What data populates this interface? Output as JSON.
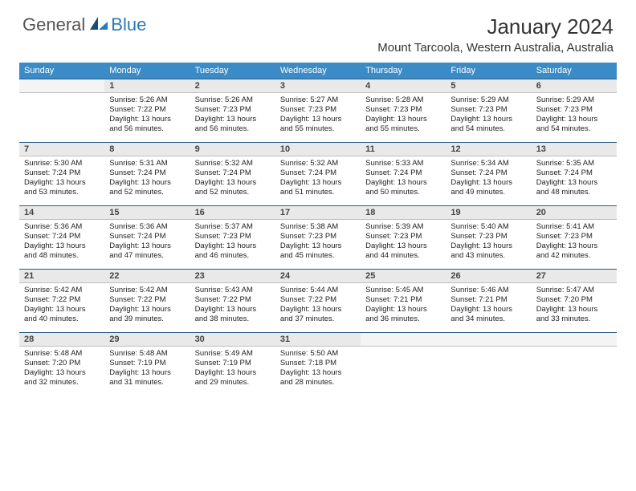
{
  "brand": {
    "general": "General",
    "blue": "Blue"
  },
  "title": {
    "month": "January 2024",
    "location": "Mount Tarcoola, Western Australia, Australia"
  },
  "colors": {
    "header_bg": "#3b8bc6",
    "header_text": "#ffffff",
    "daynum_bg": "#e9e9e9",
    "daynum_border_top": "#2a5b80",
    "logo_blue": "#2a7ab9",
    "logo_dark": "#1a4d73"
  },
  "weekdays": [
    "Sunday",
    "Monday",
    "Tuesday",
    "Wednesday",
    "Thursday",
    "Friday",
    "Saturday"
  ],
  "weeks": [
    {
      "nums": [
        "",
        "1",
        "2",
        "3",
        "4",
        "5",
        "6"
      ],
      "cells": [
        null,
        {
          "sunrise": "Sunrise: 5:26 AM",
          "sunset": "Sunset: 7:22 PM",
          "day1": "Daylight: 13 hours",
          "day2": "and 56 minutes."
        },
        {
          "sunrise": "Sunrise: 5:26 AM",
          "sunset": "Sunset: 7:23 PM",
          "day1": "Daylight: 13 hours",
          "day2": "and 56 minutes."
        },
        {
          "sunrise": "Sunrise: 5:27 AM",
          "sunset": "Sunset: 7:23 PM",
          "day1": "Daylight: 13 hours",
          "day2": "and 55 minutes."
        },
        {
          "sunrise": "Sunrise: 5:28 AM",
          "sunset": "Sunset: 7:23 PM",
          "day1": "Daylight: 13 hours",
          "day2": "and 55 minutes."
        },
        {
          "sunrise": "Sunrise: 5:29 AM",
          "sunset": "Sunset: 7:23 PM",
          "day1": "Daylight: 13 hours",
          "day2": "and 54 minutes."
        },
        {
          "sunrise": "Sunrise: 5:29 AM",
          "sunset": "Sunset: 7:23 PM",
          "day1": "Daylight: 13 hours",
          "day2": "and 54 minutes."
        }
      ]
    },
    {
      "nums": [
        "7",
        "8",
        "9",
        "10",
        "11",
        "12",
        "13"
      ],
      "cells": [
        {
          "sunrise": "Sunrise: 5:30 AM",
          "sunset": "Sunset: 7:24 PM",
          "day1": "Daylight: 13 hours",
          "day2": "and 53 minutes."
        },
        {
          "sunrise": "Sunrise: 5:31 AM",
          "sunset": "Sunset: 7:24 PM",
          "day1": "Daylight: 13 hours",
          "day2": "and 52 minutes."
        },
        {
          "sunrise": "Sunrise: 5:32 AM",
          "sunset": "Sunset: 7:24 PM",
          "day1": "Daylight: 13 hours",
          "day2": "and 52 minutes."
        },
        {
          "sunrise": "Sunrise: 5:32 AM",
          "sunset": "Sunset: 7:24 PM",
          "day1": "Daylight: 13 hours",
          "day2": "and 51 minutes."
        },
        {
          "sunrise": "Sunrise: 5:33 AM",
          "sunset": "Sunset: 7:24 PM",
          "day1": "Daylight: 13 hours",
          "day2": "and 50 minutes."
        },
        {
          "sunrise": "Sunrise: 5:34 AM",
          "sunset": "Sunset: 7:24 PM",
          "day1": "Daylight: 13 hours",
          "day2": "and 49 minutes."
        },
        {
          "sunrise": "Sunrise: 5:35 AM",
          "sunset": "Sunset: 7:24 PM",
          "day1": "Daylight: 13 hours",
          "day2": "and 48 minutes."
        }
      ]
    },
    {
      "nums": [
        "14",
        "15",
        "16",
        "17",
        "18",
        "19",
        "20"
      ],
      "cells": [
        {
          "sunrise": "Sunrise: 5:36 AM",
          "sunset": "Sunset: 7:24 PM",
          "day1": "Daylight: 13 hours",
          "day2": "and 48 minutes."
        },
        {
          "sunrise": "Sunrise: 5:36 AM",
          "sunset": "Sunset: 7:24 PM",
          "day1": "Daylight: 13 hours",
          "day2": "and 47 minutes."
        },
        {
          "sunrise": "Sunrise: 5:37 AM",
          "sunset": "Sunset: 7:23 PM",
          "day1": "Daylight: 13 hours",
          "day2": "and 46 minutes."
        },
        {
          "sunrise": "Sunrise: 5:38 AM",
          "sunset": "Sunset: 7:23 PM",
          "day1": "Daylight: 13 hours",
          "day2": "and 45 minutes."
        },
        {
          "sunrise": "Sunrise: 5:39 AM",
          "sunset": "Sunset: 7:23 PM",
          "day1": "Daylight: 13 hours",
          "day2": "and 44 minutes."
        },
        {
          "sunrise": "Sunrise: 5:40 AM",
          "sunset": "Sunset: 7:23 PM",
          "day1": "Daylight: 13 hours",
          "day2": "and 43 minutes."
        },
        {
          "sunrise": "Sunrise: 5:41 AM",
          "sunset": "Sunset: 7:23 PM",
          "day1": "Daylight: 13 hours",
          "day2": "and 42 minutes."
        }
      ]
    },
    {
      "nums": [
        "21",
        "22",
        "23",
        "24",
        "25",
        "26",
        "27"
      ],
      "cells": [
        {
          "sunrise": "Sunrise: 5:42 AM",
          "sunset": "Sunset: 7:22 PM",
          "day1": "Daylight: 13 hours",
          "day2": "and 40 minutes."
        },
        {
          "sunrise": "Sunrise: 5:42 AM",
          "sunset": "Sunset: 7:22 PM",
          "day1": "Daylight: 13 hours",
          "day2": "and 39 minutes."
        },
        {
          "sunrise": "Sunrise: 5:43 AM",
          "sunset": "Sunset: 7:22 PM",
          "day1": "Daylight: 13 hours",
          "day2": "and 38 minutes."
        },
        {
          "sunrise": "Sunrise: 5:44 AM",
          "sunset": "Sunset: 7:22 PM",
          "day1": "Daylight: 13 hours",
          "day2": "and 37 minutes."
        },
        {
          "sunrise": "Sunrise: 5:45 AM",
          "sunset": "Sunset: 7:21 PM",
          "day1": "Daylight: 13 hours",
          "day2": "and 36 minutes."
        },
        {
          "sunrise": "Sunrise: 5:46 AM",
          "sunset": "Sunset: 7:21 PM",
          "day1": "Daylight: 13 hours",
          "day2": "and 34 minutes."
        },
        {
          "sunrise": "Sunrise: 5:47 AM",
          "sunset": "Sunset: 7:20 PM",
          "day1": "Daylight: 13 hours",
          "day2": "and 33 minutes."
        }
      ]
    },
    {
      "nums": [
        "28",
        "29",
        "30",
        "31",
        "",
        "",
        ""
      ],
      "cells": [
        {
          "sunrise": "Sunrise: 5:48 AM",
          "sunset": "Sunset: 7:20 PM",
          "day1": "Daylight: 13 hours",
          "day2": "and 32 minutes."
        },
        {
          "sunrise": "Sunrise: 5:48 AM",
          "sunset": "Sunset: 7:19 PM",
          "day1": "Daylight: 13 hours",
          "day2": "and 31 minutes."
        },
        {
          "sunrise": "Sunrise: 5:49 AM",
          "sunset": "Sunset: 7:19 PM",
          "day1": "Daylight: 13 hours",
          "day2": "and 29 minutes."
        },
        {
          "sunrise": "Sunrise: 5:50 AM",
          "sunset": "Sunset: 7:18 PM",
          "day1": "Daylight: 13 hours",
          "day2": "and 28 minutes."
        },
        null,
        null,
        null
      ]
    }
  ]
}
